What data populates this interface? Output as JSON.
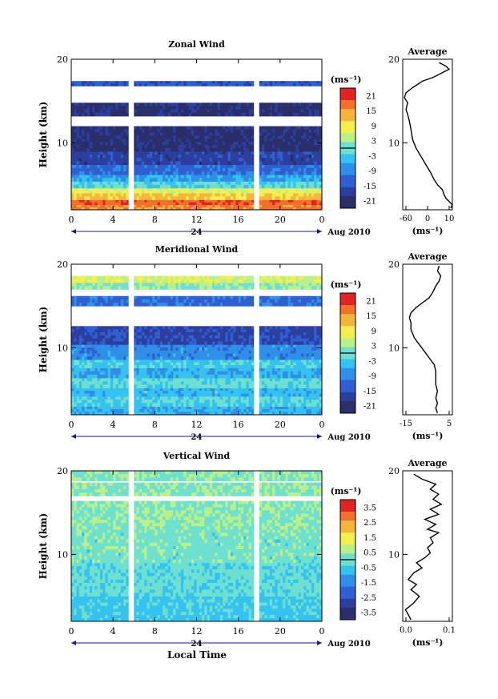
{
  "figure": {
    "xlabel": "Local Time",
    "date_label": "Aug 2010",
    "colors": {
      "heat_ramp": [
        "#2a2f6b",
        "#2c3e9e",
        "#2f5fd0",
        "#2f8fe8",
        "#35c2f0",
        "#6fe0d0",
        "#b8f08a",
        "#f5ee50",
        "#f5b43a",
        "#f0702d",
        "#e02424"
      ]
    }
  },
  "chart_data": [
    {
      "type": "heatmap",
      "title": "Zonal Wind",
      "ylabel": "Height (km)",
      "xlim": [
        0,
        24
      ],
      "ylim": [
        2,
        20
      ],
      "x_ticks": [
        "0",
        "4",
        "8",
        "12",
        "16",
        "20",
        "0"
      ],
      "y_ticks": [
        "10",
        "20"
      ],
      "day_marker": "24",
      "colorbar": {
        "unit": "(ms⁻¹)",
        "ticks": [
          "21",
          "15",
          "9",
          "3",
          "-3",
          "-9",
          "-15",
          "-21"
        ],
        "range": [
          -24,
          24
        ]
      },
      "data_gaps_hours": [
        [
          5.5,
          6.0
        ],
        [
          17.5,
          18.0
        ]
      ],
      "rows": [
        {
          "h_min": 2.0,
          "h_max": 2.6,
          "value": 16
        },
        {
          "h_min": 2.6,
          "h_max": 3.2,
          "value": 19
        },
        {
          "h_min": 3.2,
          "h_max": 4.0,
          "value": 12
        },
        {
          "h_min": 4.0,
          "h_max": 4.6,
          "value": 8
        },
        {
          "h_min": 4.6,
          "h_max": 5.4,
          "value": -2
        },
        {
          "h_min": 5.4,
          "h_max": 6.2,
          "value": -7
        },
        {
          "h_min": 6.2,
          "h_max": 7.4,
          "value": -12
        },
        {
          "h_min": 7.4,
          "h_max": 9.0,
          "value": -17
        },
        {
          "h_min": 9.0,
          "h_max": 12.0,
          "value": -21
        },
        {
          "h_min": 13.2,
          "h_max": 14.8,
          "value": -21
        },
        {
          "h_min": 16.8,
          "h_max": 17.4,
          "value": -14
        }
      ],
      "profile": {
        "title": "Average",
        "xlabel": "(ms⁻¹)",
        "x_ticks": [
          "-60",
          "0",
          "10"
        ],
        "xlim": [
          -20,
          10
        ],
        "ylim": [
          2,
          20
        ],
        "y_ticks": [
          "10",
          "20"
        ],
        "points": [
          [
            9,
            2.2
          ],
          [
            10,
            2.6
          ],
          [
            8,
            3.0
          ],
          [
            6,
            3.4
          ],
          [
            5,
            3.8
          ],
          [
            4,
            4.4
          ],
          [
            1,
            5.0
          ],
          [
            -1,
            5.6
          ],
          [
            -3,
            6.4
          ],
          [
            -6,
            7.4
          ],
          [
            -9,
            8.4
          ],
          [
            -12,
            9.4
          ],
          [
            -14,
            10.4
          ],
          [
            -15,
            11.6
          ],
          [
            -16,
            12.6
          ],
          [
            -17,
            13.4
          ],
          [
            -18,
            14.0
          ],
          [
            -17,
            14.8
          ],
          [
            -19,
            15.4
          ],
          [
            -18,
            16.0
          ],
          [
            -14,
            16.6
          ],
          [
            -8,
            17.4
          ],
          [
            -2,
            17.8
          ],
          [
            4,
            18.4
          ],
          [
            8,
            18.8
          ],
          [
            6,
            19.2
          ],
          [
            2,
            19.6
          ]
        ]
      }
    },
    {
      "type": "heatmap",
      "title": "Meridional Wind",
      "ylabel": "Height (km)",
      "xlim": [
        0,
        24
      ],
      "ylim": [
        2,
        20
      ],
      "x_ticks": [
        "0",
        "4",
        "8",
        "12",
        "16",
        "20",
        "0"
      ],
      "y_ticks": [
        "10",
        "20"
      ],
      "day_marker": "24",
      "colorbar": {
        "unit": "(ms⁻¹)",
        "ticks": [
          "21",
          "15",
          "9",
          "3",
          "-3",
          "-9",
          "-15",
          "-21"
        ],
        "range": [
          -24,
          24
        ]
      },
      "data_gaps_hours": [
        [
          5.5,
          6.0
        ],
        [
          17.5,
          18.0
        ]
      ],
      "rows": [
        {
          "h_min": 2.0,
          "h_max": 3.0,
          "value": -6
        },
        {
          "h_min": 3.0,
          "h_max": 4.2,
          "value": -2
        },
        {
          "h_min": 4.2,
          "h_max": 5.2,
          "value": -5
        },
        {
          "h_min": 5.2,
          "h_max": 6.4,
          "value": -1
        },
        {
          "h_min": 6.4,
          "h_max": 7.6,
          "value": -6
        },
        {
          "h_min": 7.6,
          "h_max": 8.6,
          "value": -3
        },
        {
          "h_min": 8.6,
          "h_max": 10.4,
          "value": -9
        },
        {
          "h_min": 10.4,
          "h_max": 12.6,
          "value": -16
        },
        {
          "h_min": 15.0,
          "h_max": 16.2,
          "value": -12
        },
        {
          "h_min": 17.0,
          "h_max": 17.8,
          "value": 2
        },
        {
          "h_min": 17.8,
          "h_max": 18.6,
          "value": 6
        }
      ],
      "profile": {
        "title": "Average",
        "xlabel": "(ms⁻¹)",
        "x_ticks": [
          "-15",
          "5"
        ],
        "xlim": [
          -20,
          10
        ],
        "ylim": [
          2,
          20
        ],
        "y_ticks": [
          "10",
          "20"
        ],
        "points": [
          [
            1,
            2.2
          ],
          [
            0,
            2.8
          ],
          [
            1,
            3.4
          ],
          [
            0,
            4.0
          ],
          [
            1,
            4.8
          ],
          [
            0,
            5.6
          ],
          [
            0,
            6.4
          ],
          [
            0,
            7.2
          ],
          [
            -1,
            8.0
          ],
          [
            -4,
            8.8
          ],
          [
            -7,
            9.6
          ],
          [
            -10,
            10.4
          ],
          [
            -13,
            11.2
          ],
          [
            -15,
            12.2
          ],
          [
            -15,
            13.0
          ],
          [
            -16,
            13.6
          ],
          [
            -15,
            14.2
          ],
          [
            -12,
            14.8
          ],
          [
            -8,
            15.4
          ],
          [
            -4,
            16.0
          ],
          [
            -2,
            16.6
          ],
          [
            0,
            17.4
          ],
          [
            2,
            18.0
          ],
          [
            3,
            18.6
          ],
          [
            1,
            19.2
          ],
          [
            2,
            19.8
          ]
        ]
      }
    },
    {
      "type": "heatmap",
      "title": "Vertical Wind",
      "ylabel": "Height (km)",
      "xlim": [
        0,
        24
      ],
      "ylim": [
        2,
        20
      ],
      "x_ticks": [
        "0",
        "4",
        "8",
        "12",
        "16",
        "20",
        "0"
      ],
      "y_ticks": [
        "10",
        "20"
      ],
      "day_marker": "24",
      "colorbar": {
        "unit": "(ms⁻¹)",
        "ticks": [
          "3.5",
          "2.5",
          "1.5",
          "0.5",
          "-0.5",
          "-1.5",
          "-2.5",
          "-3.5"
        ],
        "range": [
          -4,
          4
        ]
      },
      "data_gaps_hours": [
        [
          5.5,
          6.0
        ],
        [
          17.5,
          18.0
        ]
      ],
      "rows": [
        {
          "h_min": 2.0,
          "h_max": 5.0,
          "value": -0.6
        },
        {
          "h_min": 5.0,
          "h_max": 9.0,
          "value": -0.2
        },
        {
          "h_min": 9.0,
          "h_max": 13.0,
          "value": 0.1
        },
        {
          "h_min": 13.0,
          "h_max": 16.4,
          "value": 0.3
        },
        {
          "h_min": 17.0,
          "h_max": 18.6,
          "value": 0.2
        },
        {
          "h_min": 18.8,
          "h_max": 20.0,
          "value": 0.3
        }
      ],
      "profile": {
        "title": "Average",
        "xlabel": "(ms⁻¹)",
        "x_ticks": [
          "0.0",
          "0.1"
        ],
        "xlim": [
          -0.08,
          0.1
        ],
        "ylim": [
          2,
          20
        ],
        "y_ticks": [
          "10",
          "20"
        ],
        "points": [
          [
            -0.05,
            2.2
          ],
          [
            -0.06,
            2.8
          ],
          [
            -0.07,
            3.4
          ],
          [
            -0.04,
            4.2
          ],
          [
            -0.02,
            5.0
          ],
          [
            -0.05,
            5.8
          ],
          [
            -0.03,
            6.4
          ],
          [
            -0.06,
            7.0
          ],
          [
            -0.04,
            7.8
          ],
          [
            -0.01,
            8.4
          ],
          [
            -0.03,
            9.0
          ],
          [
            0.0,
            9.6
          ],
          [
            0.02,
            10.2
          ],
          [
            0.01,
            10.8
          ],
          [
            0.03,
            11.4
          ],
          [
            0.02,
            12.0
          ],
          [
            0.05,
            12.6
          ],
          [
            0.01,
            13.0
          ],
          [
            0.04,
            13.6
          ],
          [
            0.0,
            14.2
          ],
          [
            0.05,
            14.8
          ],
          [
            0.02,
            15.4
          ],
          [
            0.06,
            16.0
          ],
          [
            0.03,
            16.6
          ],
          [
            0.05,
            17.2
          ],
          [
            0.02,
            17.8
          ],
          [
            0.04,
            18.4
          ],
          [
            -0.01,
            19.0
          ],
          [
            -0.04,
            19.6
          ]
        ]
      }
    }
  ]
}
